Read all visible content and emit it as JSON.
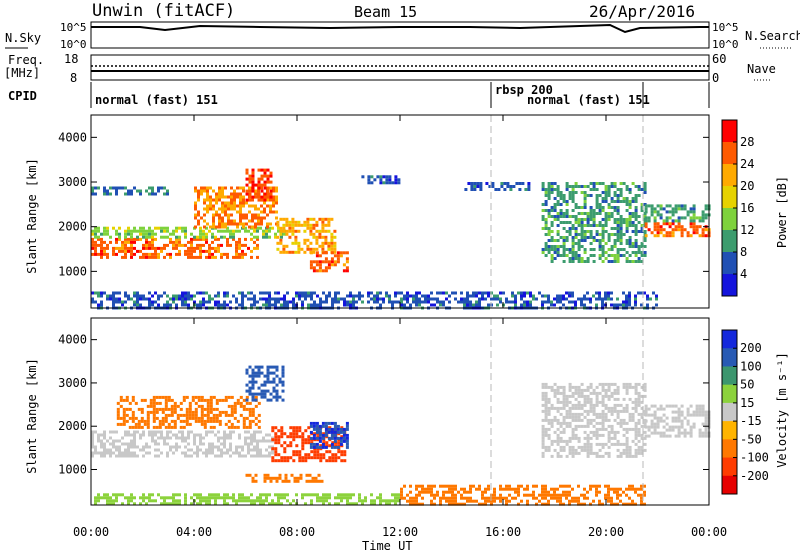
{
  "header": {
    "station": "Unwin (fitACF)",
    "beam": "Beam 15",
    "date": "26/Apr/2016"
  },
  "strips": {
    "nsky_label": "N.Sky",
    "nsky_ticks": [
      "10^5",
      "10^0"
    ],
    "nsearch_ticks": [
      "10^5",
      "10^0"
    ],
    "nsearch_label": "N.Search",
    "freq_label_1": "Freq.",
    "freq_label_2": "[MHz]",
    "freq_ticks": [
      "18",
      "8"
    ],
    "nave_ticks": [
      "60",
      "0"
    ],
    "nave_label": "Nave",
    "cpid_label": "CPID",
    "cpid_segments": [
      {
        "text": "normal (fast) 151"
      },
      {
        "text": "rbsp 200"
      },
      {
        "text": "normal (fast) 151"
      }
    ]
  },
  "panels": {
    "y_label": "Slant Range [km]",
    "y_ticks": [
      "4000",
      "3000",
      "2000",
      "1000"
    ],
    "x_ticks": [
      "00:00",
      "04:00",
      "08:00",
      "12:00",
      "16:00",
      "20:00",
      "00:00"
    ],
    "x_label": "Time UT"
  },
  "power_scale": {
    "label": "Power [dB]",
    "ticks": [
      "28",
      "24",
      "20",
      "16",
      "12",
      "8",
      "4"
    ],
    "colors": [
      "#ff0000",
      "#ff5a00",
      "#ffaa00",
      "#e6d200",
      "#7ed23c",
      "#3c9c6e",
      "#2050b4",
      "#1414dc"
    ]
  },
  "velocity_scale": {
    "label": "Velocity [m s⁻¹]",
    "ticks": [
      "200",
      "100",
      "50",
      "15",
      "-15",
      "-50",
      "-100",
      "-200"
    ],
    "colors": [
      "#1428dc",
      "#285ab4",
      "#3c966e",
      "#8cd23c",
      "#c8c8c8",
      "#ffb400",
      "#ff7800",
      "#ff3c00",
      "#e60000"
    ]
  },
  "chart_data": [
    {
      "type": "heatmap",
      "title": "Power",
      "xlabel": "Time UT",
      "ylabel": "Slant Range [km]",
      "xlim_hours": [
        0,
        24
      ],
      "ylim_km": [
        180,
        4500
      ],
      "colorbar_label": "Power [dB]",
      "colorbar_ticks": [
        4,
        8,
        12,
        16,
        20,
        24,
        28
      ],
      "regions": [
        {
          "t0": 0.0,
          "t1": 6.5,
          "r0": 1300,
          "r1": 1750,
          "value": 26
        },
        {
          "t0": 0.0,
          "t1": 7.5,
          "r0": 1750,
          "r1": 2000,
          "value": 14
        },
        {
          "t0": 4.0,
          "t1": 7.2,
          "r0": 2000,
          "r1": 2900,
          "value": 24
        },
        {
          "t0": 6.0,
          "t1": 7.0,
          "r0": 2600,
          "r1": 3300,
          "value": 28
        },
        {
          "t0": 7.2,
          "t1": 9.5,
          "r0": 1400,
          "r1": 2200,
          "value": 22
        },
        {
          "t0": 8.5,
          "t1": 10.0,
          "r0": 1000,
          "r1": 1450,
          "value": 26
        },
        {
          "t0": 0.0,
          "t1": 3.0,
          "r0": 2700,
          "r1": 2900,
          "value": 8
        },
        {
          "t0": 10.5,
          "t1": 12.0,
          "r0": 2950,
          "r1": 3150,
          "value": 6
        },
        {
          "t0": 14.5,
          "t1": 17.0,
          "r0": 2800,
          "r1": 3000,
          "value": 6
        },
        {
          "t0": 17.5,
          "t1": 21.5,
          "r0": 1200,
          "r1": 3000,
          "value": 10
        },
        {
          "t0": 21.5,
          "t1": 24.0,
          "r0": 1800,
          "r1": 2100,
          "value": 26
        },
        {
          "t0": 21.5,
          "t1": 24.0,
          "r0": 2100,
          "r1": 2500,
          "value": 10
        },
        {
          "t0": 0.0,
          "t1": 22.0,
          "r0": 200,
          "r1": 550,
          "value": 6
        }
      ]
    },
    {
      "type": "heatmap",
      "title": "Velocity",
      "xlabel": "Time UT",
      "ylabel": "Slant Range [km]",
      "xlim_hours": [
        0,
        24
      ],
      "ylim_km": [
        180,
        4500
      ],
      "colorbar_label": "Velocity [m s⁻¹]",
      "colorbar_ticks": [
        -200,
        -100,
        -50,
        -15,
        15,
        50,
        100,
        200
      ],
      "regions": [
        {
          "t0": 0.0,
          "t1": 7.0,
          "r0": 1300,
          "r1": 1900,
          "value": 0
        },
        {
          "t0": 1.0,
          "t1": 6.5,
          "r0": 2000,
          "r1": 2700,
          "value": -60
        },
        {
          "t0": 6.0,
          "t1": 7.5,
          "r0": 2600,
          "r1": 3400,
          "value": 150
        },
        {
          "t0": 7.0,
          "t1": 9.8,
          "r0": 1200,
          "r1": 2000,
          "value": -120
        },
        {
          "t0": 8.5,
          "t1": 10.0,
          "r0": 1500,
          "r1": 2100,
          "value": 200
        },
        {
          "t0": 6.0,
          "t1": 9.0,
          "r0": 700,
          "r1": 900,
          "value": -70
        },
        {
          "t0": 17.5,
          "t1": 21.5,
          "r0": 1300,
          "r1": 3000,
          "value": 0
        },
        {
          "t0": 21.5,
          "t1": 24.0,
          "r0": 1800,
          "r1": 2500,
          "value": 0
        },
        {
          "t0": 0.0,
          "t1": 12.0,
          "r0": 200,
          "r1": 450,
          "value": 40
        },
        {
          "t0": 12.0,
          "t1": 21.5,
          "r0": 200,
          "r1": 650,
          "value": -60
        }
      ]
    }
  ]
}
